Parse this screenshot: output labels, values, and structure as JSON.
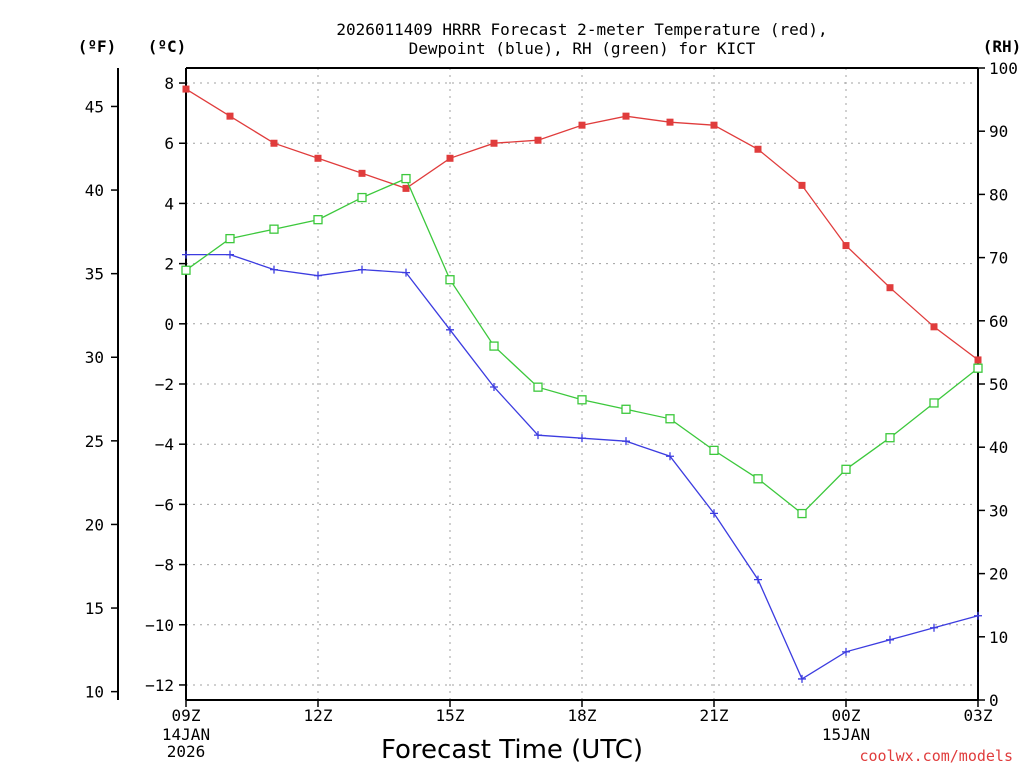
{
  "chart_data": {
    "type": "line",
    "title_line1": "2026011409 HRRR Forecast 2-meter Temperature (red),",
    "title_line2": "Dewpoint (blue), RH (green) for KICT",
    "xlabel": "Forecast Time (UTC)",
    "unit_f": "(ºF)",
    "unit_c": "(ºC)",
    "unit_rh": "(RH)",
    "credit": "coolwx.com/models",
    "x_ticks": [
      {
        "hour": 0,
        "label": "09Z",
        "sub1": "14JAN",
        "sub2": "2026"
      },
      {
        "hour": 3,
        "label": "12Z",
        "sub1": "",
        "sub2": ""
      },
      {
        "hour": 6,
        "label": "15Z",
        "sub1": "",
        "sub2": ""
      },
      {
        "hour": 9,
        "label": "18Z",
        "sub1": "",
        "sub2": ""
      },
      {
        "hour": 12,
        "label": "21Z",
        "sub1": "",
        "sub2": ""
      },
      {
        "hour": 15,
        "label": "00Z",
        "sub1": "15JAN",
        "sub2": ""
      },
      {
        "hour": 18,
        "label": "03Z",
        "sub1": "",
        "sub2": ""
      }
    ],
    "xlim": [
      0,
      18
    ],
    "ylim_c": [
      -12.5,
      8.5
    ],
    "ylim_rh": [
      0,
      100
    ],
    "y_ticks_c": [
      "8",
      "6",
      "4",
      "2",
      "0",
      "−2",
      "−4",
      "−6",
      "−8",
      "−10",
      "−12"
    ],
    "y_ticks_c_values": [
      8,
      6,
      4,
      2,
      0,
      -2,
      -4,
      -6,
      -8,
      -10,
      -12
    ],
    "y_ticks_f": [
      "45",
      "40",
      "35",
      "30",
      "25",
      "20",
      "15",
      "10"
    ],
    "y_ticks_f_values": [
      45,
      40,
      35,
      30,
      25,
      20,
      15,
      10
    ],
    "y_ticks_rh": [
      "100",
      "90",
      "80",
      "70",
      "60",
      "50",
      "40",
      "30",
      "20",
      "10",
      "0"
    ],
    "y_ticks_rh_values": [
      100,
      90,
      80,
      70,
      60,
      50,
      40,
      30,
      20,
      10,
      0
    ],
    "series": [
      {
        "name": "Temperature",
        "unit": "C",
        "color": "#e03c3c",
        "marker": "filled-square",
        "values": [
          7.8,
          6.9,
          6.0,
          5.5,
          5.0,
          4.5,
          5.5,
          6.0,
          6.1,
          6.6,
          6.9,
          6.7,
          6.6,
          5.8,
          4.6,
          2.6,
          1.2,
          -0.1,
          -1.2
        ]
      },
      {
        "name": "Dewpoint",
        "unit": "C",
        "color": "#3c3ce0",
        "marker": "plus",
        "values": [
          2.3,
          2.3,
          1.8,
          1.6,
          1.8,
          1.7,
          -0.2,
          -2.1,
          -3.7,
          -3.8,
          -3.9,
          -4.4,
          -6.3,
          -8.5,
          -11.8,
          -10.9,
          -10.5,
          -10.1,
          -9.7
        ]
      },
      {
        "name": "RH",
        "unit": "%",
        "color": "#3cc83c",
        "marker": "open-square",
        "values": [
          68,
          73,
          74.5,
          76,
          79.5,
          82.5,
          66.5,
          56,
          49.5,
          47.5,
          46,
          44.5,
          39.5,
          35,
          29.5,
          36.5,
          41.5,
          47,
          52.5
        ]
      }
    ]
  }
}
